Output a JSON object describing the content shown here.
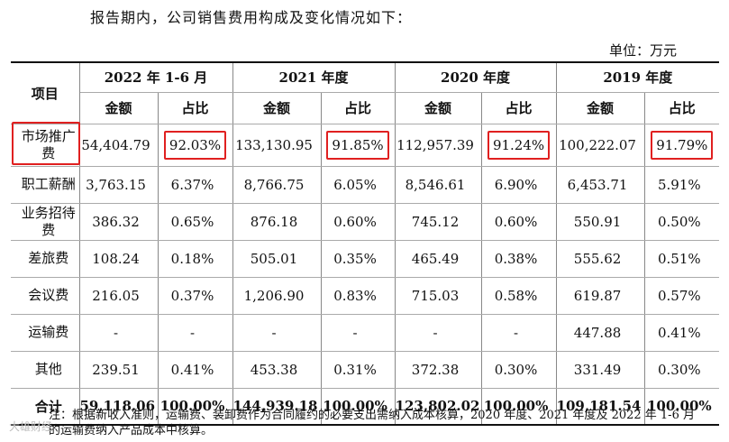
{
  "intro": "报告期内，公司销售费用构成及变化情况如下：",
  "unit": "单位：万元",
  "header": {
    "item_label": "项目",
    "periods": [
      "2022 年 1-6 月",
      "2021 年度",
      "2020 年度",
      "2019 年度"
    ],
    "amount_label": "金额",
    "ratio_label": "占比"
  },
  "rows": [
    {
      "item": "市场推广费",
      "values": [
        "54,404.79",
        "92.03%",
        "133,130.95",
        "91.85%",
        "112,957.39",
        "91.24%",
        "100,222.07",
        "91.79%"
      ]
    },
    {
      "item": "职工薪酬",
      "values": [
        "3,763.15",
        "6.37%",
        "8,766.75",
        "6.05%",
        "8,546.61",
        "6.90%",
        "6,453.71",
        "5.91%"
      ]
    },
    {
      "item": "业务招待费",
      "values": [
        "386.32",
        "0.65%",
        "876.18",
        "0.60%",
        "745.12",
        "0.60%",
        "550.91",
        "0.50%"
      ]
    },
    {
      "item": "差旅费",
      "values": [
        "108.24",
        "0.18%",
        "505.01",
        "0.35%",
        "465.49",
        "0.38%",
        "555.62",
        "0.51%"
      ]
    },
    {
      "item": "会议费",
      "values": [
        "216.05",
        "0.37%",
        "1,206.90",
        "0.83%",
        "715.03",
        "0.58%",
        "619.87",
        "0.57%"
      ]
    },
    {
      "item": "运输费",
      "values": [
        "-",
        "-",
        "-",
        "-",
        "-",
        "-",
        "447.88",
        "0.41%"
      ]
    },
    {
      "item": "其他",
      "values": [
        "239.51",
        "0.41%",
        "453.38",
        "0.31%",
        "372.38",
        "0.30%",
        "331.49",
        "0.30%"
      ]
    }
  ],
  "total": {
    "item": "合计",
    "values": [
      "59,118.06",
      "100.00%",
      "144,939.18",
      "100.00%",
      "123,802.02",
      "100.00%",
      "109,181.54",
      "100.00%"
    ]
  },
  "note": "注：根据新收入准则，运输费、装卸费作为合同履约的必要支出需纳入成本核算，2020 年度、2021 年度及 2022 年 1-6 月的运输费纳入产品成本中核算。",
  "watermark": "大雄财经",
  "highlight_color": "#e02020"
}
